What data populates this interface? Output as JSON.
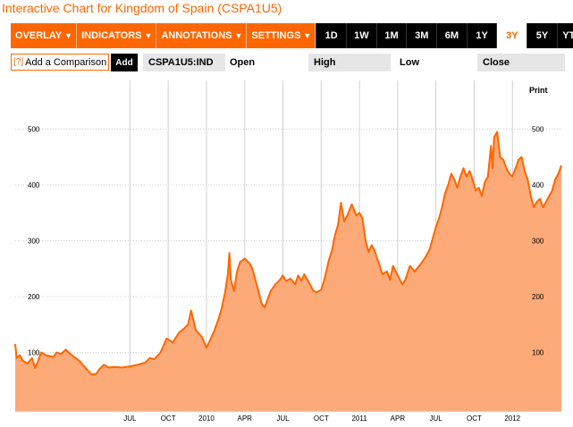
{
  "title": "Interactive Chart for Kingdom of Spain (CSPA1U5)",
  "toolbar": {
    "menus": [
      {
        "label": "OVERLAY",
        "caret": "▼"
      },
      {
        "label": "INDICATORS",
        "caret": "▼"
      },
      {
        "label": "ANNOTATIONS",
        "caret": "▼"
      },
      {
        "label": "SETTINGS",
        "caret": "▼"
      }
    ],
    "ranges": [
      "1D",
      "1W",
      "1M",
      "3M",
      "6M",
      "1Y",
      "3Y",
      "5Y",
      "YTD"
    ],
    "active_range": "3Y"
  },
  "comparison": {
    "help": "[?]",
    "placeholder": "Add a Comparison",
    "add_label": "Add"
  },
  "quote_bar": {
    "ticker": "CSPA1U5:IND",
    "open_label": "Open",
    "high_label": "High",
    "low_label": "Low",
    "close_label": "Close"
  },
  "print_label": "Print",
  "colors": {
    "accent": "#ff6600",
    "area_fill": "#fcaa78",
    "line": "#ff6600"
  },
  "chart_data": {
    "type": "area",
    "y_ticks": [
      100,
      200,
      300,
      400,
      500
    ],
    "ylim": [
      0,
      550
    ],
    "x_tick_labels": [
      "JUL",
      "OCT",
      "2010",
      "APR",
      "JUL",
      "OCT",
      "2011",
      "APR",
      "JUL",
      "OCT",
      "2012"
    ],
    "x_tick_positions": [
      0.5,
      0.75,
      1.0,
      1.25,
      1.5,
      1.75,
      2.0,
      2.25,
      2.5,
      2.75,
      3.0
    ],
    "x_range": [
      -0.25,
      3.32
    ],
    "points": [
      [
        -0.25,
        115
      ],
      [
        -0.24,
        90
      ],
      [
        -0.22,
        95
      ],
      [
        -0.2,
        85
      ],
      [
        -0.17,
        80
      ],
      [
        -0.14,
        90
      ],
      [
        -0.12,
        72
      ],
      [
        -0.1,
        85
      ],
      [
        -0.08,
        100
      ],
      [
        -0.05,
        95
      ],
      [
        0.0,
        92
      ],
      [
        0.02,
        100
      ],
      [
        0.05,
        97
      ],
      [
        0.08,
        105
      ],
      [
        0.1,
        100
      ],
      [
        0.13,
        93
      ],
      [
        0.17,
        85
      ],
      [
        0.2,
        75
      ],
      [
        0.25,
        60
      ],
      [
        0.28,
        62
      ],
      [
        0.3,
        70
      ],
      [
        0.33,
        78
      ],
      [
        0.36,
        73
      ],
      [
        0.4,
        74
      ],
      [
        0.45,
        73
      ],
      [
        0.5,
        75
      ],
      [
        0.55,
        78
      ],
      [
        0.6,
        82
      ],
      [
        0.63,
        90
      ],
      [
        0.66,
        88
      ],
      [
        0.7,
        100
      ],
      [
        0.74,
        125
      ],
      [
        0.78,
        118
      ],
      [
        0.82,
        135
      ],
      [
        0.85,
        142
      ],
      [
        0.88,
        150
      ],
      [
        0.9,
        175
      ],
      [
        0.93,
        140
      ],
      [
        0.97,
        128
      ],
      [
        1.0,
        108
      ],
      [
        1.02,
        120
      ],
      [
        1.05,
        138
      ],
      [
        1.08,
        160
      ],
      [
        1.1,
        180
      ],
      [
        1.12,
        205
      ],
      [
        1.14,
        240
      ],
      [
        1.15,
        278
      ],
      [
        1.16,
        230
      ],
      [
        1.18,
        210
      ],
      [
        1.2,
        245
      ],
      [
        1.22,
        262
      ],
      [
        1.25,
        268
      ],
      [
        1.28,
        260
      ],
      [
        1.3,
        250
      ],
      [
        1.32,
        230
      ],
      [
        1.34,
        210
      ],
      [
        1.36,
        188
      ],
      [
        1.38,
        180
      ],
      [
        1.4,
        195
      ],
      [
        1.42,
        210
      ],
      [
        1.45,
        222
      ],
      [
        1.48,
        230
      ],
      [
        1.5,
        238
      ],
      [
        1.52,
        228
      ],
      [
        1.55,
        232
      ],
      [
        1.58,
        222
      ],
      [
        1.6,
        238
      ],
      [
        1.62,
        228
      ],
      [
        1.64,
        240
      ],
      [
        1.67,
        225
      ],
      [
        1.7,
        210
      ],
      [
        1.72,
        208
      ],
      [
        1.75,
        212
      ],
      [
        1.77,
        230
      ],
      [
        1.8,
        265
      ],
      [
        1.82,
        282
      ],
      [
        1.84,
        310
      ],
      [
        1.86,
        328
      ],
      [
        1.88,
        368
      ],
      [
        1.9,
        335
      ],
      [
        1.92,
        345
      ],
      [
        1.95,
        365
      ],
      [
        1.98,
        345
      ],
      [
        2.0,
        350
      ],
      [
        2.02,
        340
      ],
      [
        2.04,
        300
      ],
      [
        2.06,
        280
      ],
      [
        2.08,
        292
      ],
      [
        2.1,
        282
      ],
      [
        2.12,
        265
      ],
      [
        2.15,
        240
      ],
      [
        2.18,
        245
      ],
      [
        2.2,
        230
      ],
      [
        2.22,
        255
      ],
      [
        2.25,
        238
      ],
      [
        2.28,
        222
      ],
      [
        2.3,
        230
      ],
      [
        2.33,
        255
      ],
      [
        2.36,
        245
      ],
      [
        2.4,
        258
      ],
      [
        2.43,
        270
      ],
      [
        2.46,
        285
      ],
      [
        2.48,
        305
      ],
      [
        2.5,
        325
      ],
      [
        2.52,
        340
      ],
      [
        2.54,
        360
      ],
      [
        2.56,
        385
      ],
      [
        2.58,
        400
      ],
      [
        2.6,
        420
      ],
      [
        2.62,
        410
      ],
      [
        2.64,
        395
      ],
      [
        2.66,
        415
      ],
      [
        2.68,
        430
      ],
      [
        2.7,
        415
      ],
      [
        2.72,
        425
      ],
      [
        2.74,
        410
      ],
      [
        2.76,
        390
      ],
      [
        2.78,
        395
      ],
      [
        2.8,
        380
      ],
      [
        2.82,
        405
      ],
      [
        2.84,
        415
      ],
      [
        2.86,
        470
      ],
      [
        2.87,
        430
      ],
      [
        2.88,
        485
      ],
      [
        2.9,
        495
      ],
      [
        2.92,
        450
      ],
      [
        2.94,
        445
      ],
      [
        2.96,
        430
      ],
      [
        2.98,
        420
      ],
      [
        3.0,
        415
      ],
      [
        3.02,
        430
      ],
      [
        3.04,
        445
      ],
      [
        3.06,
        450
      ],
      [
        3.08,
        425
      ],
      [
        3.1,
        410
      ],
      [
        3.12,
        380
      ],
      [
        3.14,
        360
      ],
      [
        3.16,
        370
      ],
      [
        3.18,
        375
      ],
      [
        3.2,
        360
      ],
      [
        3.22,
        370
      ],
      [
        3.24,
        380
      ],
      [
        3.26,
        390
      ],
      [
        3.28,
        410
      ],
      [
        3.3,
        420
      ],
      [
        3.32,
        435
      ]
    ]
  }
}
